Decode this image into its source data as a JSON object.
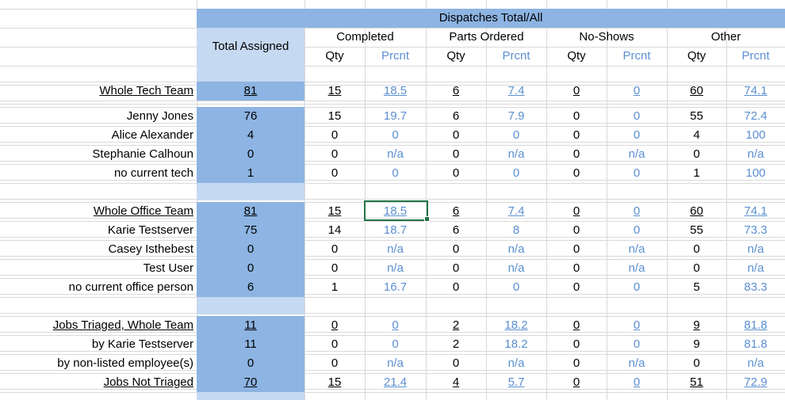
{
  "header": {
    "banner": "Dispatches Total/All",
    "total_assigned": "Total Assigned",
    "groups": [
      "Completed",
      "Parts Ordered",
      "No-Shows",
      "Other"
    ],
    "qty": "Qty",
    "prcnt": "Prcnt"
  },
  "rows": [
    {
      "name": "Whole Tech Team",
      "total": "81",
      "vals": [
        "15",
        "18.5",
        "6",
        "7.4",
        "0",
        "0",
        "60",
        "74.1"
      ]
    },
    {
      "name": "Jenny Jones",
      "total": "76",
      "vals": [
        "15",
        "19.7",
        "6",
        "7.9",
        "0",
        "0",
        "55",
        "72.4"
      ]
    },
    {
      "name": "Alice Alexander",
      "total": "4",
      "vals": [
        "0",
        "0",
        "0",
        "0",
        "0",
        "0",
        "4",
        "100"
      ]
    },
    {
      "name": "Stephanie Calhoun",
      "total": "0",
      "vals": [
        "0",
        "n/a",
        "0",
        "n/a",
        "0",
        "n/a",
        "0",
        "n/a"
      ]
    },
    {
      "name": "no current tech",
      "total": "1",
      "vals": [
        "0",
        "0",
        "0",
        "0",
        "0",
        "0",
        "1",
        "100"
      ]
    },
    {
      "name": "Whole Office Team",
      "total": "81",
      "vals": [
        "15",
        "18.5",
        "6",
        "7.4",
        "0",
        "0",
        "60",
        "74.1"
      ]
    },
    {
      "name": "Karie Testserver",
      "total": "75",
      "vals": [
        "14",
        "18.7",
        "6",
        "8",
        "0",
        "0",
        "55",
        "73.3"
      ]
    },
    {
      "name": "Casey Isthebest",
      "total": "0",
      "vals": [
        "0",
        "n/a",
        "0",
        "n/a",
        "0",
        "n/a",
        "0",
        "n/a"
      ]
    },
    {
      "name": "Test User",
      "total": "0",
      "vals": [
        "0",
        "n/a",
        "0",
        "n/a",
        "0",
        "n/a",
        "0",
        "n/a"
      ]
    },
    {
      "name": "no current office person",
      "total": "6",
      "vals": [
        "1",
        "16.7",
        "0",
        "0",
        "0",
        "0",
        "5",
        "83.3"
      ]
    },
    {
      "name": "Jobs Triaged, Whole Team",
      "total": "11",
      "vals": [
        "0",
        "0",
        "2",
        "18.2",
        "0",
        "0",
        "9",
        "81.8"
      ]
    },
    {
      "name": "by Karie Testserver",
      "total": "11",
      "vals": [
        "0",
        "0",
        "2",
        "18.2",
        "0",
        "0",
        "9",
        "81.8"
      ]
    },
    {
      "name": "by non-listed employee(s)",
      "total": "0",
      "vals": [
        "0",
        "n/a",
        "0",
        "n/a",
        "0",
        "n/a",
        "0",
        "n/a"
      ]
    },
    {
      "name": "Jobs Not Triaged",
      "total": "70",
      "vals": [
        "15",
        "21.4",
        "4",
        "5.7",
        "0",
        "0",
        "51",
        "72.9"
      ]
    }
  ],
  "colors": {
    "banner": "#8db4e2",
    "light": "#c5d9f1",
    "dark": "#8db4e2",
    "percent_text": "#5b8fd0",
    "selection": "#217346",
    "gridline": "#d9d9d9"
  }
}
